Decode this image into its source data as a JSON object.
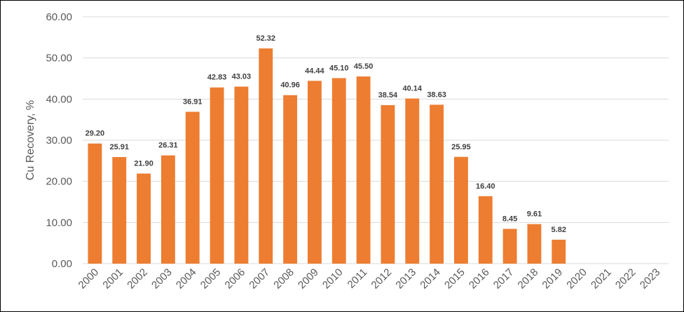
{
  "chart_data": {
    "type": "bar",
    "title": "",
    "xlabel": "",
    "ylabel": "Cu Recovery, %",
    "ylim": [
      0,
      60
    ],
    "ytick_step": 10,
    "ytick_labels": [
      "0.00",
      "10.00",
      "20.00",
      "30.00",
      "40.00",
      "50.00",
      "60.00"
    ],
    "grid": true,
    "legend": "none",
    "categories": [
      "2000",
      "2001",
      "2002",
      "2003",
      "2004",
      "2005",
      "2006",
      "2007",
      "2008",
      "2009",
      "2010",
      "2011",
      "2012",
      "2013",
      "2014",
      "2015",
      "2016",
      "2017",
      "2018",
      "2019",
      "2020",
      "2021",
      "2022",
      "2023"
    ],
    "values": [
      29.2,
      25.91,
      21.9,
      26.31,
      36.91,
      42.83,
      43.03,
      52.32,
      40.96,
      44.44,
      45.1,
      45.5,
      38.54,
      40.14,
      38.63,
      25.95,
      16.4,
      8.45,
      9.61,
      5.82,
      null,
      null,
      null,
      null
    ],
    "value_labels": [
      "29.20",
      "25.91",
      "21.90",
      "26.31",
      "36.91",
      "42.83",
      "43.03",
      "52.32",
      "40.96",
      "44.44",
      "45.10",
      "45.50",
      "38.54",
      "40.14",
      "38.63",
      "25.95",
      "16.40",
      "8.45",
      "9.61",
      "5.82",
      "",
      "",
      "",
      ""
    ],
    "bar_color": "#ED7D31",
    "grid_color": "#D9D9D9",
    "text_color": "#595959",
    "label_color": "#404040"
  }
}
